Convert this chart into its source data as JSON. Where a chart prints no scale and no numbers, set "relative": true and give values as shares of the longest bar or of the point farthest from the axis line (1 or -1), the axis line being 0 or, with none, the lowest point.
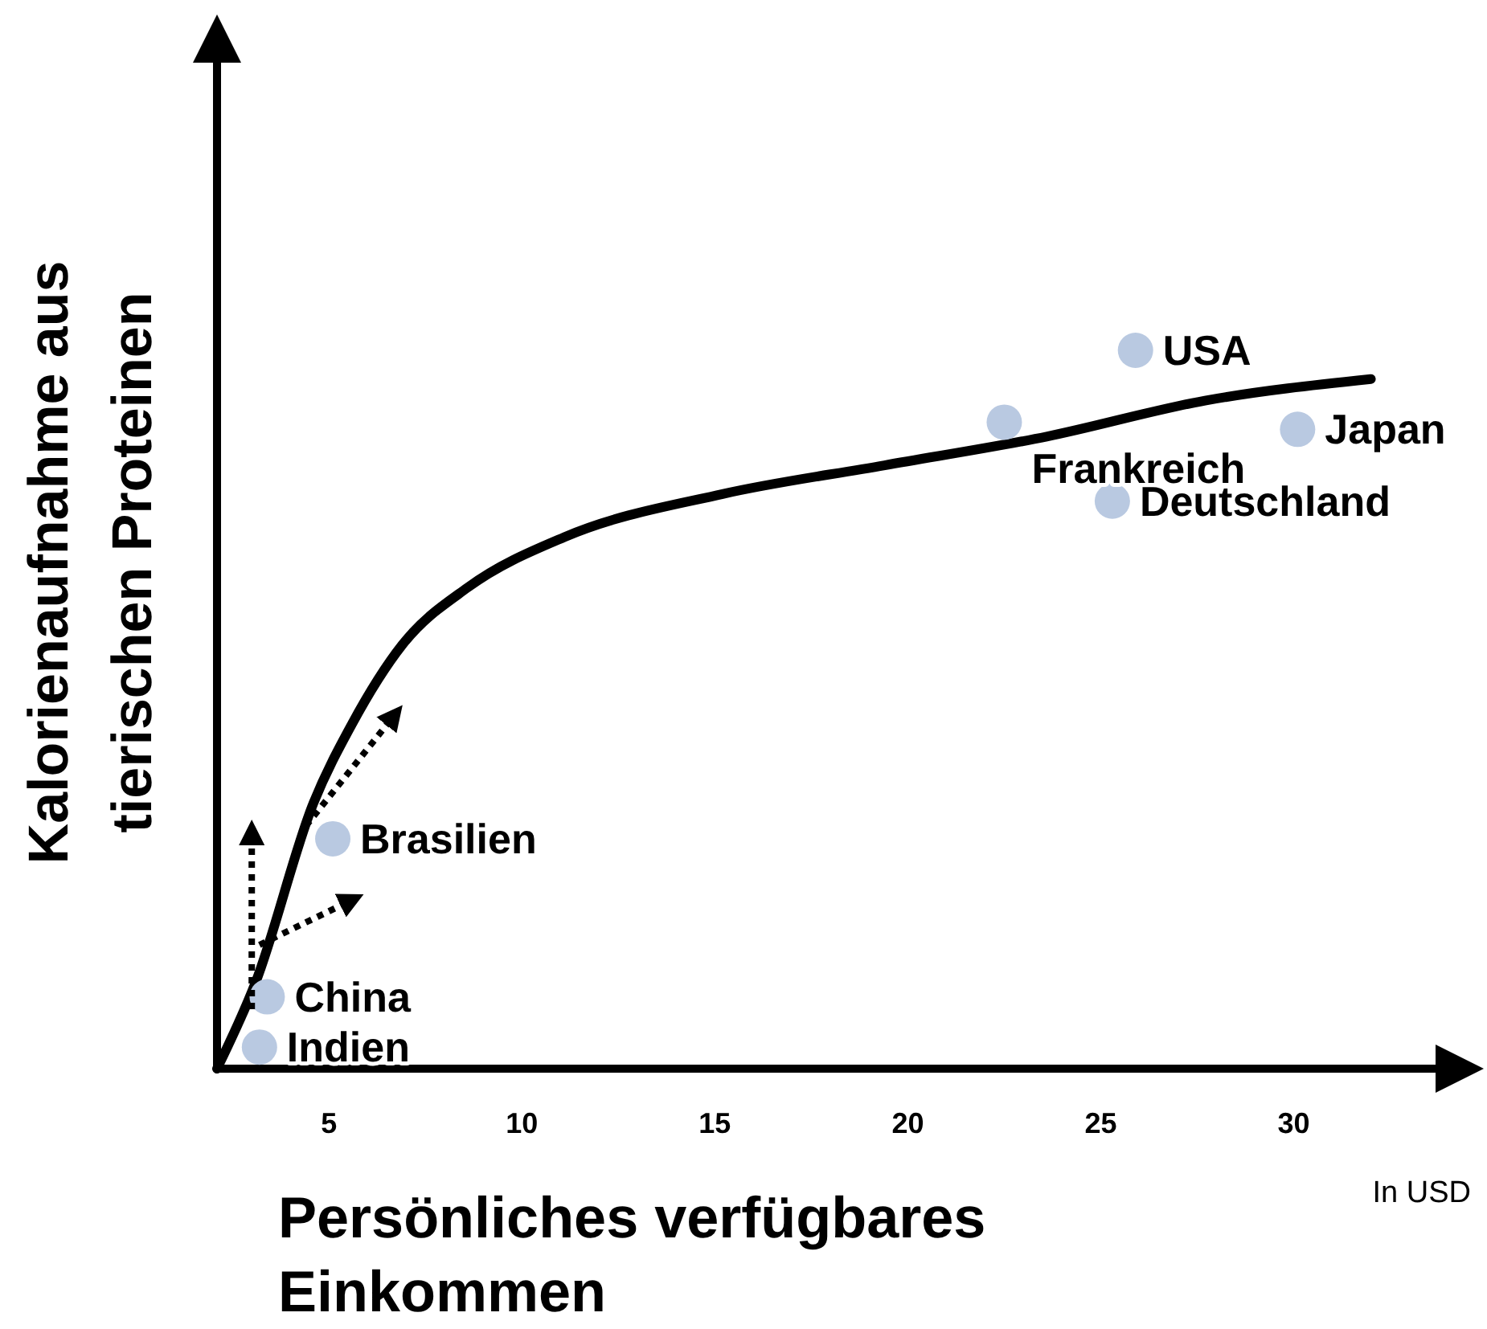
{
  "chart_data": {
    "type": "scatter",
    "xlabel": "Persönliches verfügbares Einkommen",
    "ylabel": "Kalorienaufnahme aus tierischen Proteinen",
    "relative": true,
    "xlim": [
      2.1,
      34.3
    ],
    "xticks": [
      5,
      10,
      15,
      20,
      25,
      30
    ],
    "marker": "circle",
    "series": [
      {
        "type": "line",
        "marker": "none",
        "color": "#000000",
        "x": [
          2.1,
          3.1,
          4.6,
          5.6,
          6.9,
          8.6,
          11.1,
          15.2,
          19.4,
          23.6,
          27.7,
          32
        ],
        "values": [
          0,
          0.12,
          0.37,
          0.48,
          0.59,
          0.67,
          0.74,
          0.8,
          0.84,
          0.88,
          0.93,
          0.96
        ]
      },
      {
        "color": "#b9c9e1",
        "x": [
          3.2,
          3.4,
          5.1,
          22.5,
          25.9,
          30.1,
          25.3
        ],
        "values": [
          0.03,
          0.1,
          0.32,
          0.9,
          1,
          0.89,
          0.79
        ]
      }
    ],
    "annotations": [
      {
        "text": "Indien",
        "x": 3.2,
        "y": 0.03
      },
      {
        "text": "China",
        "x": 3.4,
        "y": 0.1
      },
      {
        "text": "Brasilien",
        "x": 5.1,
        "y": 0.32
      },
      {
        "text": "Frankreich",
        "x": 22.5,
        "y": 0.9
      },
      {
        "text": "USA",
        "x": 25.9,
        "y": 1
      },
      {
        "text": "Japan",
        "x": 30.1,
        "y": 0.89
      },
      {
        "text": "Deutschland",
        "x": 25.3,
        "y": 0.79
      },
      "In USD"
    ]
  }
}
